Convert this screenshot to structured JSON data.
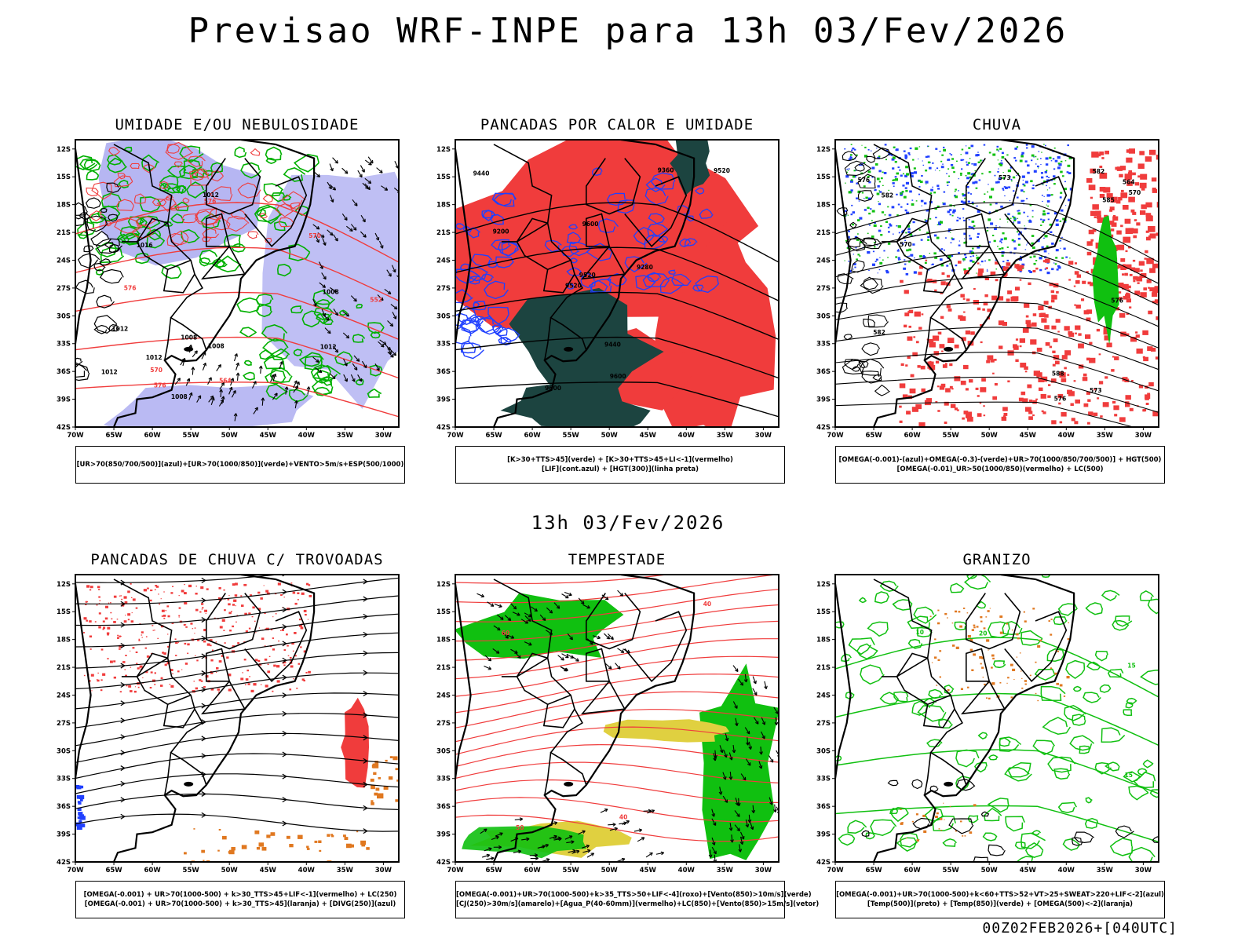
{
  "header": {
    "title": "Previsao WRF-INPE  para 13h 03/Fev/2026"
  },
  "mid_title": "13h 03/Fev/2026",
  "footer": "00Z02FEB2026+[040UTC]",
  "axes": {
    "lat_labels": [
      "12S",
      "15S",
      "18S",
      "21S",
      "24S",
      "27S",
      "30S",
      "33S",
      "36S",
      "39S",
      "42S"
    ],
    "lon_labels": [
      "70W",
      "65W",
      "60W",
      "55W",
      "50W",
      "45W",
      "40W",
      "35W",
      "30W"
    ]
  },
  "colors": {
    "humidity_blue": "#a9a9f0",
    "green_contour": "#00b000",
    "red": "#f03c3c",
    "blue": "#2040ff",
    "dark_green": "#1c4440",
    "bright_green": "#10c010",
    "yellow": "#e0d040",
    "orange": "#e07820"
  },
  "panels": [
    {
      "title": "UMIDADE E/OU NEBULOSIDADE",
      "legend": [
        "[UR>70(850/700/500)](azul)+[UR>70(1000/850)](verde)+VENTO>5m/s+ESP(500/1000)"
      ],
      "contour_labels": [
        "1012",
        "1012",
        "1008",
        "1012",
        "1016",
        "1008",
        "1012",
        "1008",
        "1012",
        "1008",
        "576",
        "576",
        "570",
        "564",
        "570",
        "552",
        "576"
      ]
    },
    {
      "title": "PANCADAS POR CALOR E UMIDADE",
      "legend": [
        "[K>30+TTS>45](verde) + [K>30+TTS>45+LI<-1](vermelho)",
        "[LIF](cont.azul) + [HGT(300)](linha preta)"
      ],
      "contour_labels": [
        "9600",
        "9520",
        "9600",
        "9520",
        "9440",
        "9360",
        "9280",
        "9200",
        "9600",
        "9520",
        "9440"
      ]
    },
    {
      "title": "CHUVA",
      "legend": [
        "[OMEGA(-0.001)-(azul)+OMEGA(-0.3)-(verde)+UR>70(1000/850/700/500)] + HGT(500)",
        "[OMEGA(-0.01)_UR>50(1000/850)(vermelho) + LC(500)"
      ],
      "contour_labels": [
        "588",
        "582",
        "576",
        "573",
        "570",
        "576",
        "573",
        "570",
        "585",
        "582",
        "576",
        "564",
        "582"
      ]
    },
    {
      "title": "PANCADAS DE CHUVA C/ TROVOADAS",
      "legend": [
        "[OMEGA(-0.001) + UR>70(1000-500) + k>30_TTS>45+LIF<-1](vermelho) + LC(250)",
        "[OMEGA(-0.001) + UR>70(1000-500) + k>30_TTS>45](laranja) + [DIVG(250)](azul)"
      ],
      "contour_labels": []
    },
    {
      "title": "TEMPESTADE",
      "legend": [
        "[OMEGA(-0.001)+UR>70(1000-500)+k>35_TTS>50+LIF<-4](roxo)+[Vento(850)>10m/s](verde)",
        "[CJ(250)>30m/s](amarelo)+[Agua_P(40-60mm)](vermelho)+LC(850)+[Vento(850)>15m/s](vetor)"
      ],
      "contour_labels": [
        "40",
        "50",
        "40",
        "60"
      ]
    },
    {
      "title": "GRANIZO",
      "legend": [
        "[OMEGA(-0.001)+UR>70(1000-500)+k<60+TTS>52+VT>25+SWEAT>220+LIF<-2](azul)",
        "[Temp(500)](preto) + [Temp(850)](verde) + [OMEGA(500)<-2](laranja)"
      ],
      "contour_labels": [
        "15",
        "10",
        "15",
        "20"
      ]
    }
  ]
}
